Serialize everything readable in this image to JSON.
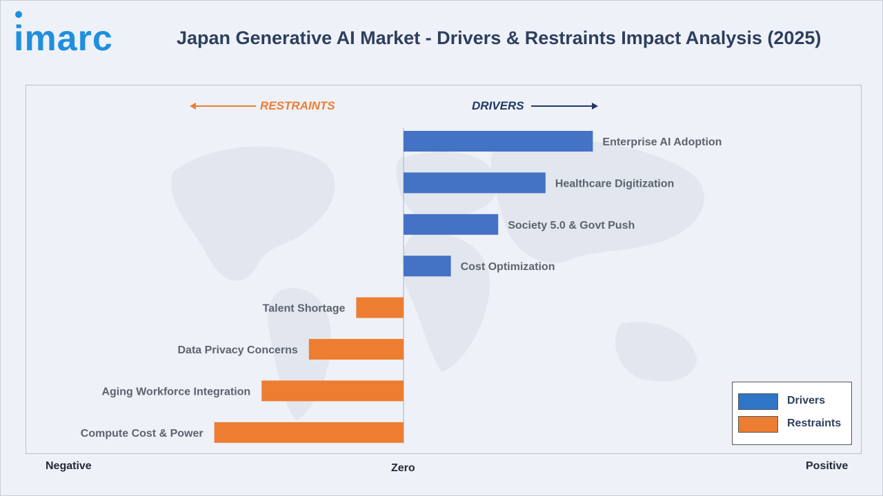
{
  "brand": {
    "logo_text": "imarc"
  },
  "header": {
    "title": "Japan Generative AI Market - Drivers & Restraints Impact Analysis (2025)"
  },
  "direction_labels": {
    "restraints": "RESTRAINTS",
    "drivers": "DRIVERS"
  },
  "axis": {
    "negative": "Negative",
    "zero": "Zero",
    "positive": "Positive"
  },
  "legend": {
    "drivers": "Drivers",
    "restraints": "Restraints"
  },
  "colors": {
    "drivers": "#4472c4",
    "restraints": "#ed7d31",
    "legend_drivers": "#2e75c7"
  },
  "chart_data": {
    "type": "bar",
    "orientation": "horizontal",
    "title": "Japan Generative AI Market - Drivers & Restraints Impact Analysis (2025)",
    "xlim": [
      -8,
      10
    ],
    "legend_position": "bottom-right",
    "categories": [
      "Enterprise AI Adoption",
      "Healthcare Digitization",
      "Society 5.0 & Govt Push",
      "Cost Optimization",
      "Talent Shortage",
      "Data Privacy Concerns",
      "Aging Workforce Integration",
      "Compute Cost & Power"
    ],
    "series": [
      {
        "name": "Drivers",
        "values": [
          8,
          6,
          4,
          2,
          null,
          null,
          null,
          null
        ]
      },
      {
        "name": "Restraints",
        "values": [
          null,
          null,
          null,
          null,
          -2,
          -4,
          -6,
          -8
        ]
      }
    ]
  }
}
